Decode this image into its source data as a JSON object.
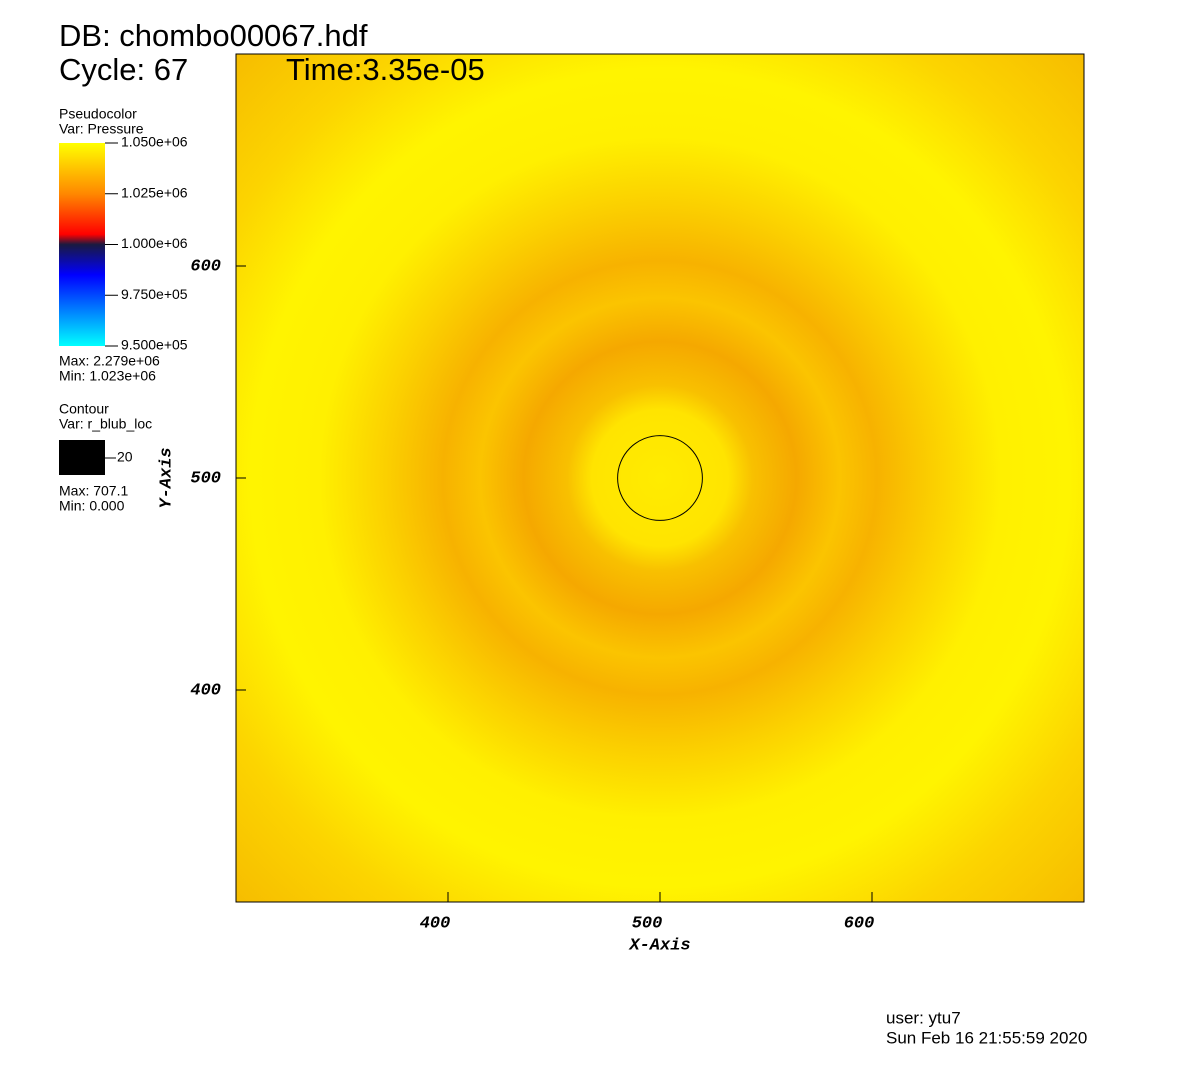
{
  "header": {
    "db": "DB: chombo00067.hdf",
    "cycle": "Cycle: 67",
    "time": "Time:3.35e-05"
  },
  "chart_data": {
    "type": "pseudocolor",
    "x_label": "X-Axis",
    "y_label": "Y-Axis",
    "xlim": [
      300,
      700
    ],
    "ylim": [
      300,
      700
    ],
    "xticks": [
      400,
      500,
      600
    ],
    "yticks": [
      400,
      500,
      600
    ],
    "pseudocolor_legend": {
      "title": "Pseudocolor",
      "var": "Var: Pressure",
      "range": [
        950000,
        1050000
      ],
      "ticks": [
        {
          "value": 1050000,
          "label": "1.050e+06"
        },
        {
          "value": 1025000,
          "label": "1.025e+06"
        },
        {
          "value": 1000000,
          "label": "1.000e+06"
        },
        {
          "value": 975000,
          "label": "9.750e+05"
        },
        {
          "value": 950000,
          "label": "9.500e+05"
        }
      ],
      "max": "Max: 2.279e+06",
      "min": "Min:  1.023e+06"
    },
    "contour": {
      "title": "Contour",
      "var": "Var: r_blub_loc",
      "levels": [
        20
      ],
      "center": [
        500,
        500
      ],
      "max": "Max: 707.1",
      "min": "Min: 0.000"
    }
  },
  "footer": {
    "user": "user: ytu7",
    "date": "Sun Feb 16 21:55:59 2020"
  }
}
